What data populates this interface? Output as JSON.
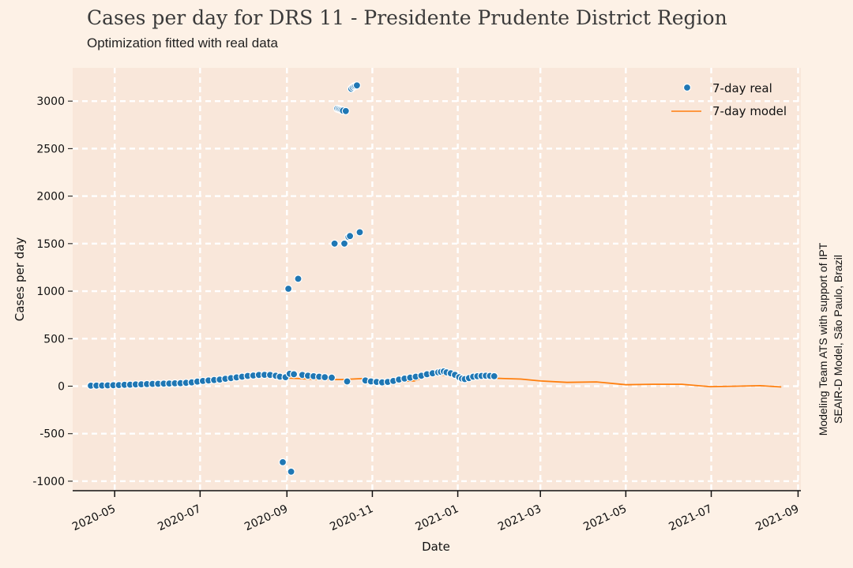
{
  "chart_data": {
    "type": "scatter+line",
    "title": "Cases per day for DRS 11 - Presidente Prudente District Region",
    "subtitle": "Optimization fitted with real data",
    "xlabel": "Date",
    "ylabel": "Cases per day",
    "credit_line1": "Modeling Team ATS with support of IPT",
    "credit_line2": "SEAIR-D Model, São Paulo, Brazil",
    "ylim": [
      -1100,
      3350
    ],
    "xlim": [
      "2020-04-01",
      "2021-09-03"
    ],
    "y_ticks": [
      -1000,
      -500,
      0,
      500,
      1000,
      1500,
      2000,
      2500,
      3000
    ],
    "x_ticks": [
      "2020-05",
      "2020-07",
      "2020-09",
      "2020-11",
      "2021-01",
      "2021-03",
      "2021-05",
      "2021-07",
      "2021-09"
    ],
    "grid": true,
    "legend_position": "top-right",
    "colors": {
      "real": "#1f77b4",
      "model": "#ff7f0e",
      "plot_bg": "#f9e7da",
      "grid": "#ffffff"
    },
    "series": [
      {
        "name": "7-day real",
        "kind": "scatter",
        "points": [
          [
            "2020-04-14",
            5
          ],
          [
            "2020-04-18",
            6
          ],
          [
            "2020-04-22",
            7
          ],
          [
            "2020-04-26",
            8
          ],
          [
            "2020-04-30",
            10
          ],
          [
            "2020-05-04",
            12
          ],
          [
            "2020-05-08",
            14
          ],
          [
            "2020-05-12",
            16
          ],
          [
            "2020-05-16",
            18
          ],
          [
            "2020-05-20",
            20
          ],
          [
            "2020-05-24",
            22
          ],
          [
            "2020-05-28",
            24
          ],
          [
            "2020-06-01",
            25
          ],
          [
            "2020-06-05",
            27
          ],
          [
            "2020-06-09",
            28
          ],
          [
            "2020-06-13",
            30
          ],
          [
            "2020-06-17",
            32
          ],
          [
            "2020-06-21",
            35
          ],
          [
            "2020-06-25",
            40
          ],
          [
            "2020-06-29",
            48
          ],
          [
            "2020-07-03",
            55
          ],
          [
            "2020-07-07",
            60
          ],
          [
            "2020-07-11",
            65
          ],
          [
            "2020-07-15",
            70
          ],
          [
            "2020-07-19",
            78
          ],
          [
            "2020-07-23",
            85
          ],
          [
            "2020-07-27",
            92
          ],
          [
            "2020-07-31",
            100
          ],
          [
            "2020-08-04",
            108
          ],
          [
            "2020-08-08",
            112
          ],
          [
            "2020-08-12",
            118
          ],
          [
            "2020-08-16",
            120
          ],
          [
            "2020-08-20",
            118
          ],
          [
            "2020-08-24",
            110
          ],
          [
            "2020-08-27",
            100
          ],
          [
            "2020-08-29",
            -800
          ],
          [
            "2020-08-31",
            95
          ],
          [
            "2020-09-02",
            1025
          ],
          [
            "2020-09-03",
            130
          ],
          [
            "2020-09-04",
            -900
          ],
          [
            "2020-09-06",
            125
          ],
          [
            "2020-09-09",
            1130
          ],
          [
            "2020-09-12",
            118
          ],
          [
            "2020-09-16",
            110
          ],
          [
            "2020-09-20",
            105
          ],
          [
            "2020-09-24",
            100
          ],
          [
            "2020-09-28",
            95
          ],
          [
            "2020-10-03",
            90
          ],
          [
            "2020-10-05",
            1500
          ],
          [
            "2020-10-07",
            2920
          ],
          [
            "2020-10-08",
            2915
          ],
          [
            "2020-10-09",
            2910
          ],
          [
            "2020-10-10",
            2905
          ],
          [
            "2020-10-11",
            2900
          ],
          [
            "2020-10-13",
            2895
          ],
          [
            "2020-10-12",
            1500
          ],
          [
            "2020-10-14",
            50
          ],
          [
            "2020-10-15",
            1570
          ],
          [
            "2020-10-16",
            1580
          ],
          [
            "2020-10-17",
            3130
          ],
          [
            "2020-10-18",
            3145
          ],
          [
            "2020-10-19",
            3155
          ],
          [
            "2020-10-20",
            3160
          ],
          [
            "2020-10-21",
            3165
          ],
          [
            "2020-10-23",
            1620
          ],
          [
            "2020-10-27",
            60
          ],
          [
            "2020-10-31",
            50
          ],
          [
            "2020-11-04",
            45
          ],
          [
            "2020-11-08",
            40
          ],
          [
            "2020-11-12",
            45
          ],
          [
            "2020-11-16",
            55
          ],
          [
            "2020-11-20",
            70
          ],
          [
            "2020-11-24",
            80
          ],
          [
            "2020-11-28",
            90
          ],
          [
            "2020-12-02",
            100
          ],
          [
            "2020-12-06",
            110
          ],
          [
            "2020-12-10",
            125
          ],
          [
            "2020-12-14",
            135
          ],
          [
            "2020-12-18",
            145
          ],
          [
            "2020-12-20",
            150
          ],
          [
            "2020-12-22",
            155
          ],
          [
            "2020-12-24",
            145
          ],
          [
            "2020-12-27",
            135
          ],
          [
            "2020-12-30",
            120
          ],
          [
            "2021-01-02",
            95
          ],
          [
            "2021-01-04",
            80
          ],
          [
            "2021-01-06",
            75
          ],
          [
            "2021-01-09",
            85
          ],
          [
            "2021-01-12",
            100
          ],
          [
            "2021-01-15",
            105
          ],
          [
            "2021-01-18",
            108
          ],
          [
            "2021-01-21",
            110
          ],
          [
            "2021-01-24",
            108
          ],
          [
            "2021-01-27",
            105
          ]
        ]
      },
      {
        "name": "7-day model",
        "kind": "line",
        "points": [
          [
            "2020-04-14",
            -5
          ],
          [
            "2020-05-01",
            -8
          ],
          [
            "2020-05-20",
            5
          ],
          [
            "2020-06-10",
            8
          ],
          [
            "2020-06-20",
            15
          ],
          [
            "2020-07-05",
            45
          ],
          [
            "2020-07-25",
            80
          ],
          [
            "2020-08-10",
            95
          ],
          [
            "2020-08-25",
            90
          ],
          [
            "2020-09-10",
            80
          ],
          [
            "2020-09-25",
            70
          ],
          [
            "2020-10-10",
            70
          ],
          [
            "2020-10-25",
            80
          ],
          [
            "2020-11-05",
            65
          ],
          [
            "2020-11-20",
            50
          ],
          [
            "2020-12-01",
            55
          ],
          [
            "2020-12-08",
            95
          ],
          [
            "2020-12-15",
            120
          ],
          [
            "2020-12-25",
            115
          ],
          [
            "2021-01-10",
            90
          ],
          [
            "2021-01-25",
            85
          ],
          [
            "2021-02-15",
            75
          ],
          [
            "2021-03-01",
            55
          ],
          [
            "2021-03-20",
            40
          ],
          [
            "2021-04-10",
            45
          ],
          [
            "2021-05-01",
            15
          ],
          [
            "2021-05-20",
            20
          ],
          [
            "2021-06-10",
            20
          ],
          [
            "2021-06-30",
            -5
          ],
          [
            "2021-07-20",
            0
          ],
          [
            "2021-08-05",
            5
          ],
          [
            "2021-08-20",
            -8
          ]
        ]
      }
    ]
  }
}
